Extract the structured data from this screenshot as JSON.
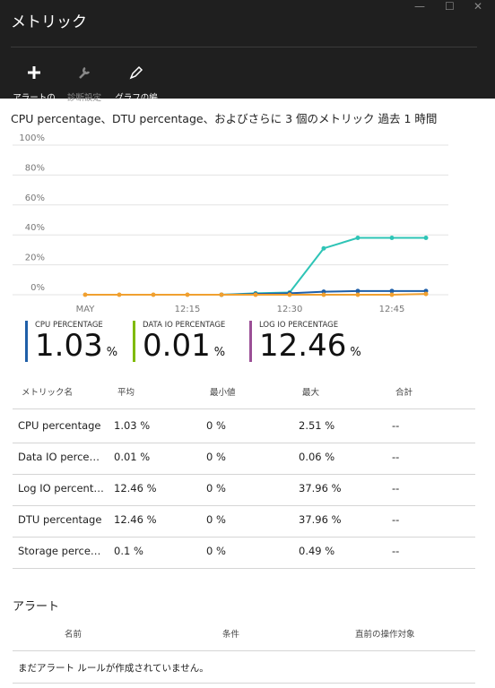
{
  "header": {
    "title": "メトリック",
    "toolbar": [
      {
        "label": "アラートの\n追加"
      },
      {
        "label": "診断設定"
      },
      {
        "label": "グラフの編\n集"
      }
    ]
  },
  "chart": {
    "title": "CPU percentage、DTU percentage、およびさらに 3 個のメトリック 過去 1 時間"
  },
  "chart_data": {
    "type": "line",
    "categories": [
      "MAY",
      null,
      null,
      "12:15",
      null,
      null,
      "12:30",
      null,
      null,
      "12:45",
      null
    ],
    "series": [
      {
        "color": "#2ec4b6",
        "values": [
          null,
          null,
          null,
          null,
          0,
          1,
          1.5,
          31,
          38,
          38,
          38
        ]
      },
      {
        "color": "#1f5fa8",
        "values": [
          null,
          null,
          null,
          null,
          0,
          0.5,
          1,
          2,
          2.5,
          2.5,
          2.5
        ]
      },
      {
        "color": "#f0a030",
        "values": [
          0,
          0,
          0,
          0,
          0,
          0,
          0,
          0,
          0,
          0,
          0.5
        ]
      }
    ],
    "ylim": [
      0,
      100
    ],
    "yticks": [
      {
        "value": 0,
        "label": "0%"
      },
      {
        "value": 20,
        "label": "20%"
      },
      {
        "value": 40,
        "label": "40%"
      },
      {
        "value": 60,
        "label": "60%"
      },
      {
        "value": 80,
        "label": "80%"
      },
      {
        "value": 100,
        "label": "100%"
      }
    ],
    "grid": true
  },
  "tiles": [
    {
      "label": "CPU PERCENTAGE",
      "value": "1.03",
      "unit": "%",
      "color": "#1f5fa8"
    },
    {
      "label": "DATA IO PERCENTAGE",
      "value": "0.01",
      "unit": "%",
      "color": "#7fba00"
    },
    {
      "label": "LOG IO PERCENTAGE",
      "value": "12.46",
      "unit": "%",
      "color": "#9b4f96"
    }
  ],
  "table": {
    "columns": [
      "メトリック名",
      "平均",
      "最小値",
      "最大",
      "合計"
    ],
    "rows": [
      [
        "CPU percentage",
        "1.03 %",
        "0 %",
        "2.51 %",
        "--"
      ],
      [
        "Data IO perce…",
        "0.01 %",
        "0 %",
        "0.06 %",
        "--"
      ],
      [
        "Log IO percent…",
        "12.46 %",
        "0 %",
        "37.96 %",
        "--"
      ],
      [
        "DTU percentage",
        "12.46 %",
        "0 %",
        "37.96 %",
        "--"
      ],
      [
        "Storage perce…",
        "0.1 %",
        "0 %",
        "0.49 %",
        "--"
      ]
    ]
  },
  "alerts": {
    "title": "アラート",
    "columns": [
      "名前",
      "条件",
      "直前の操作対象"
    ],
    "empty": "まだアラート ルールが作成されていません。"
  }
}
